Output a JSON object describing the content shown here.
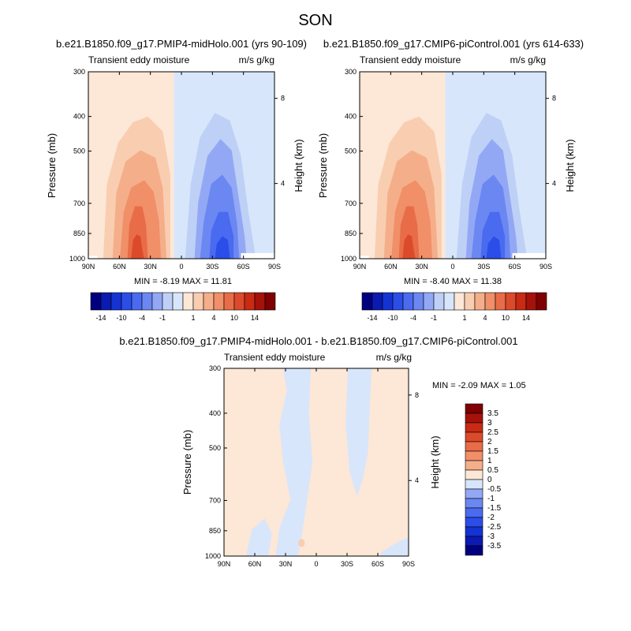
{
  "season": "SON",
  "colors": {
    "levels": [
      "#00007f",
      "#0b1ab0",
      "#1533d3",
      "#2b4ee8",
      "#4a6af0",
      "#6b87f2",
      "#93a8f5",
      "#bfd0f7",
      "#d8e6fb",
      "#fde7d6",
      "#f9cdb0",
      "#f5ae8a",
      "#f08f68",
      "#e86c48",
      "#dc4a2c",
      "#c82a14",
      "#a5120a",
      "#7f0000"
    ],
    "frame": "#000000"
  },
  "panels": [
    {
      "title": "b.e21.B1850.f09_g17.PMIP4-midHolo.001 (yrs 90-109)",
      "left_label": "Transient eddy moisture",
      "right_label": "m/s g/kg",
      "ylabel": "Pressure (mb)",
      "ylabel_right": "Height (km)",
      "minmax": "MIN =  -8.19  MAX =  11.81"
    },
    {
      "title": "b.e21.B1850.f09_g17.CMIP6-piControl.001 (yrs 614-633)",
      "left_label": "Transient eddy moisture",
      "right_label": "m/s g/kg",
      "ylabel": "Pressure (mb)",
      "ylabel_right": "Height (km)",
      "minmax": "MIN =  -8.40  MAX =  11.38"
    },
    {
      "title": "b.e21.B1850.f09_g17.PMIP4-midHolo.001 - b.e21.B1850.f09_g17.CMIP6-piControl.001",
      "left_label": "Transient eddy moisture",
      "right_label": "m/s g/kg",
      "ylabel": "Pressure (mb)",
      "ylabel_right": "Height (km)",
      "minmax": "MIN =  -2.09  MAX =   1.05"
    }
  ],
  "axes": {
    "x_ticks": [
      "90N",
      "60N",
      "30N",
      "0",
      "30S",
      "60S",
      "90S"
    ],
    "y_ticks": [
      "300",
      "400",
      "500",
      "700",
      "850",
      "1000"
    ],
    "height_ticks": [
      "8",
      "4"
    ]
  },
  "colorbar_top": {
    "labels": [
      "-14",
      "-10",
      "-4",
      "-1",
      "1",
      "4",
      "10",
      "14"
    ]
  },
  "colorbar_diff": {
    "labels": [
      "3.5",
      "3",
      "2.5",
      "2",
      "1.5",
      "1",
      "0.5",
      "0",
      "-0.5",
      "-1",
      "-1.5",
      "-2",
      "-2.5",
      "-3",
      "-3.5"
    ]
  },
  "chart_data": [
    {
      "type": "heatmap",
      "title": "b.e21.B1850.f09_g17.PMIP4-midHolo.001 (yrs 90-109)",
      "xlabel": "",
      "ylabel": "Pressure (mb)",
      "x_ticks": [
        "90N",
        "60N",
        "30N",
        "0",
        "30S",
        "60S",
        "90S"
      ],
      "y_ticks": [
        300,
        400,
        500,
        700,
        850,
        1000
      ],
      "ylim": [
        1000,
        300
      ],
      "log_scale_y": true,
      "min": -8.19,
      "max": 11.81,
      "contour_levels": [
        -14,
        -10,
        -4,
        -1,
        1,
        4,
        10,
        14
      ]
    },
    {
      "type": "heatmap",
      "title": "b.e21.B1850.f09_g17.CMIP6-piControl.001 (yrs 614-633)",
      "xlabel": "",
      "ylabel": "Pressure (mb)",
      "x_ticks": [
        "90N",
        "60N",
        "30N",
        "0",
        "30S",
        "60S",
        "90S"
      ],
      "y_ticks": [
        300,
        400,
        500,
        700,
        850,
        1000
      ],
      "ylim": [
        1000,
        300
      ],
      "log_scale_y": true,
      "min": -8.4,
      "max": 11.38,
      "contour_levels": [
        -14,
        -10,
        -4,
        -1,
        1,
        4,
        10,
        14
      ]
    },
    {
      "type": "heatmap",
      "title": "b.e21.B1850.f09_g17.PMIP4-midHolo.001 - b.e21.B1850.f09_g17.CMIP6-piControl.001",
      "xlabel": "",
      "ylabel": "Pressure (mb)",
      "x_ticks": [
        "90N",
        "60N",
        "30N",
        "0",
        "30S",
        "60S",
        "90S"
      ],
      "y_ticks": [
        300,
        400,
        500,
        700,
        850,
        1000
      ],
      "ylim": [
        1000,
        300
      ],
      "log_scale_y": true,
      "min": -2.09,
      "max": 1.05,
      "contour_levels": [
        -3.5,
        -3,
        -2.5,
        -2,
        -1.5,
        -1,
        -0.5,
        0,
        0.5,
        1,
        1.5,
        2,
        2.5,
        3,
        3.5
      ]
    }
  ]
}
